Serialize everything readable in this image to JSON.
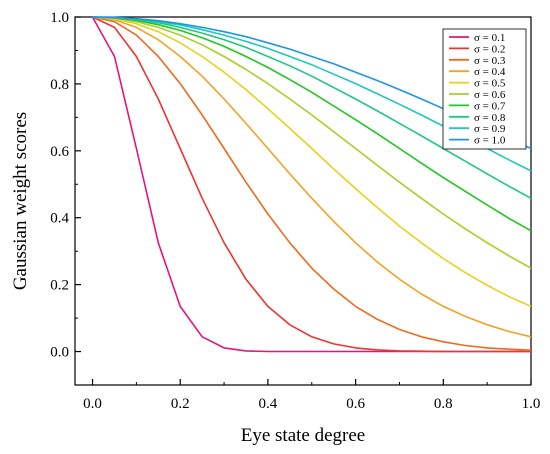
{
  "chart_data": {
    "type": "line",
    "title": "",
    "xlabel": "Eye state degree",
    "ylabel": "Gaussian weight scores",
    "xlim": [
      -0.04,
      1.0
    ],
    "ylim": [
      -0.1,
      1.0
    ],
    "xticks": [
      0.0,
      0.2,
      0.4,
      0.6,
      0.8,
      1.0
    ],
    "xtick_labels": [
      "0.0",
      "0.2",
      "0.4",
      "0.6",
      "0.8",
      "1.0"
    ],
    "yticks": [
      0.0,
      0.2,
      0.4,
      0.6,
      0.8,
      1.0
    ],
    "ytick_labels": [
      "0.0",
      "0.2",
      "0.4",
      "0.6",
      "0.8",
      "1.0"
    ],
    "grid": false,
    "legend_position": "top-right",
    "function": "exp(-x^2 / (2*sigma^2))",
    "x": [
      0.0,
      0.05,
      0.1,
      0.15,
      0.2,
      0.25,
      0.3,
      0.35,
      0.4,
      0.45,
      0.5,
      0.55,
      0.6,
      0.65,
      0.7,
      0.75,
      0.8,
      0.85,
      0.9,
      0.95,
      1.0
    ],
    "series": [
      {
        "name": "σ = 0.1",
        "sigma": 0.1,
        "color": "#e6147a",
        "values": [
          1.0,
          0.882,
          0.607,
          0.325,
          0.135,
          0.044,
          0.011,
          0.002,
          0.0,
          0.0,
          0.0,
          0.0,
          0.0,
          0.0,
          0.0,
          0.0,
          0.0,
          0.0,
          0.0,
          0.0,
          0.0
        ]
      },
      {
        "name": "σ = 0.2",
        "sigma": 0.2,
        "color": "#ee3333",
        "values": [
          1.0,
          0.969,
          0.882,
          0.755,
          0.607,
          0.458,
          0.325,
          0.216,
          0.135,
          0.08,
          0.044,
          0.023,
          0.011,
          0.005,
          0.002,
          0.001,
          0.0,
          0.0,
          0.0,
          0.0,
          0.0
        ]
      },
      {
        "name": "σ = 0.3",
        "sigma": 0.3,
        "color": "#f06a1e",
        "values": [
          1.0,
          0.986,
          0.946,
          0.882,
          0.801,
          0.707,
          0.607,
          0.506,
          0.411,
          0.325,
          0.249,
          0.187,
          0.135,
          0.096,
          0.066,
          0.044,
          0.029,
          0.018,
          0.011,
          0.007,
          0.004
        ]
      },
      {
        "name": "σ = 0.4",
        "sigma": 0.4,
        "color": "#f5a123",
        "values": [
          1.0,
          0.992,
          0.969,
          0.932,
          0.882,
          0.823,
          0.755,
          0.682,
          0.607,
          0.531,
          0.458,
          0.389,
          0.325,
          0.267,
          0.216,
          0.172,
          0.135,
          0.105,
          0.08,
          0.06,
          0.044
        ]
      },
      {
        "name": "σ = 0.5",
        "sigma": 0.5,
        "color": "#e6d21a",
        "values": [
          1.0,
          0.995,
          0.98,
          0.956,
          0.923,
          0.882,
          0.835,
          0.783,
          0.726,
          0.667,
          0.607,
          0.546,
          0.487,
          0.43,
          0.375,
          0.325,
          0.278,
          0.236,
          0.198,
          0.164,
          0.135
        ]
      },
      {
        "name": "σ = 0.6",
        "sigma": 0.6,
        "color": "#a6d124",
        "values": [
          1.0,
          0.997,
          0.986,
          0.969,
          0.946,
          0.917,
          0.882,
          0.843,
          0.801,
          0.755,
          0.707,
          0.657,
          0.607,
          0.556,
          0.506,
          0.458,
          0.411,
          0.367,
          0.325,
          0.286,
          0.249
        ]
      },
      {
        "name": "σ = 0.7",
        "sigma": 0.7,
        "color": "#1fc81f",
        "values": [
          1.0,
          0.997,
          0.99,
          0.977,
          0.96,
          0.938,
          0.912,
          0.882,
          0.849,
          0.813,
          0.775,
          0.734,
          0.693,
          0.651,
          0.607,
          0.563,
          0.52,
          0.479,
          0.438,
          0.398,
          0.361
        ]
      },
      {
        "name": "σ = 0.8",
        "sigma": 0.8,
        "color": "#1fc882",
        "values": [
          1.0,
          0.998,
          0.992,
          0.983,
          0.969,
          0.952,
          0.932,
          0.909,
          0.882,
          0.854,
          0.823,
          0.789,
          0.755,
          0.719,
          0.682,
          0.645,
          0.607,
          0.569,
          0.531,
          0.494,
          0.458
        ]
      },
      {
        "name": "σ = 0.9",
        "sigma": 0.9,
        "color": "#1ec8bd",
        "values": [
          1.0,
          0.998,
          0.994,
          0.986,
          0.976,
          0.962,
          0.946,
          0.927,
          0.906,
          0.882,
          0.857,
          0.829,
          0.801,
          0.77,
          0.739,
          0.707,
          0.674,
          0.64,
          0.607,
          0.573,
          0.54
        ]
      },
      {
        "name": "σ = 1.0",
        "sigma": 1.0,
        "color": "#1e96e6",
        "values": [
          1.0,
          0.999,
          0.995,
          0.989,
          0.98,
          0.969,
          0.956,
          0.941,
          0.923,
          0.904,
          0.882,
          0.86,
          0.835,
          0.81,
          0.783,
          0.755,
          0.726,
          0.697,
          0.667,
          0.637,
          0.607
        ]
      }
    ]
  }
}
